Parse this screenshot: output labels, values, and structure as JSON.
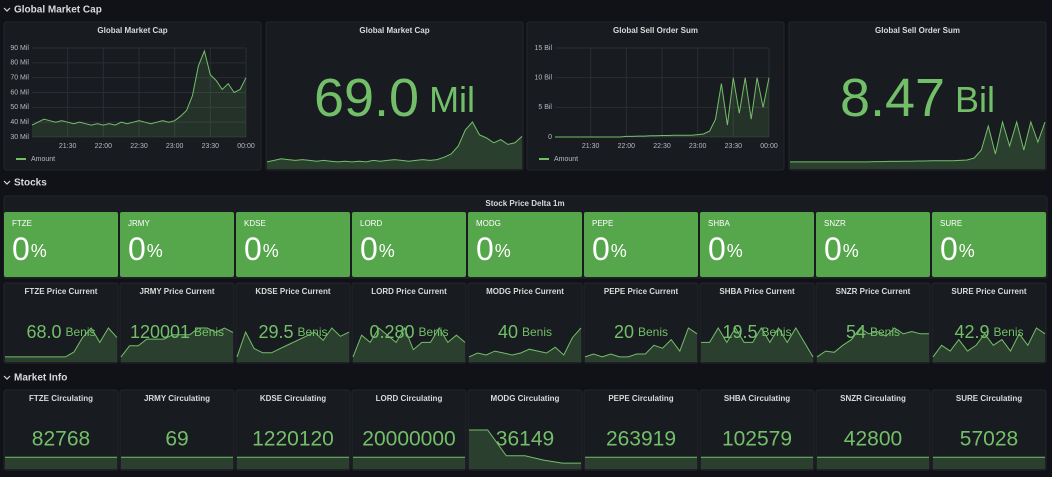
{
  "sections": [
    {
      "title": "Global Market Cap"
    },
    {
      "title": "Stocks",
      "group_title": "Stock Price Delta 1m"
    },
    {
      "title": "Market Info"
    }
  ],
  "chart_data": [
    {
      "type": "line",
      "title": "Global Market Cap",
      "x": [
        "21:00",
        "21:05",
        "21:10",
        "21:15",
        "21:20",
        "21:25",
        "21:30",
        "21:35",
        "21:40",
        "21:45",
        "21:50",
        "21:55",
        "22:00",
        "22:05",
        "22:10",
        "22:15",
        "22:20",
        "22:25",
        "22:30",
        "22:35",
        "22:40",
        "22:45",
        "22:50",
        "22:55",
        "23:00",
        "23:05",
        "23:10",
        "23:15",
        "23:20",
        "23:25",
        "23:30",
        "23:35",
        "23:40",
        "23:45",
        "23:50",
        "23:55",
        "00:00"
      ],
      "series": [
        {
          "name": "Amount",
          "color": "#73bf69",
          "values": [
            38000000,
            40000000,
            42000000,
            41000000,
            40000000,
            41000000,
            40000000,
            39000000,
            40000000,
            39000000,
            38000000,
            39000000,
            38000000,
            39000000,
            38000000,
            40000000,
            39000000,
            40000000,
            41000000,
            40000000,
            39000000,
            40000000,
            41000000,
            40000000,
            41000000,
            44000000,
            48000000,
            58000000,
            78000000,
            88000000,
            72000000,
            68000000,
            62000000,
            66000000,
            60000000,
            62000000,
            70000000
          ]
        }
      ],
      "ylim": [
        30000000,
        90000000
      ],
      "yticks": [
        {
          "value": 30000000,
          "label": "30 Mil"
        },
        {
          "value": 40000000,
          "label": "40 Mil"
        },
        {
          "value": 50000000,
          "label": "50 Mil"
        },
        {
          "value": 60000000,
          "label": "60 Mil"
        },
        {
          "value": 70000000,
          "label": "70 Mil"
        },
        {
          "value": 80000000,
          "label": "80 Mil"
        },
        {
          "value": 90000000,
          "label": "90 Mil"
        }
      ],
      "xticks": [
        "21:30",
        "22:00",
        "22:30",
        "23:00",
        "23:30",
        "00:00"
      ],
      "grid": true
    },
    {
      "type": "line",
      "title": "Global Sell Order Sum",
      "x": [
        "21:00",
        "21:05",
        "21:10",
        "21:15",
        "21:20",
        "21:25",
        "21:30",
        "21:35",
        "21:40",
        "21:45",
        "21:50",
        "21:55",
        "22:00",
        "22:05",
        "22:10",
        "22:15",
        "22:20",
        "22:25",
        "22:30",
        "22:35",
        "22:40",
        "22:45",
        "22:50",
        "22:55",
        "23:00",
        "23:05",
        "23:10",
        "23:15",
        "23:20",
        "23:25",
        "23:30",
        "23:35",
        "23:40",
        "23:45",
        "23:50",
        "23:55",
        "00:00"
      ],
      "series": [
        {
          "name": "Amount",
          "color": "#73bf69",
          "values": [
            0,
            0,
            0,
            0,
            0,
            0,
            0,
            0,
            0,
            0,
            0,
            0,
            100000000,
            100000000,
            150000000,
            150000000,
            200000000,
            200000000,
            250000000,
            250000000,
            300000000,
            300000000,
            300000000,
            300000000,
            400000000,
            500000000,
            1000000000,
            3000000000,
            9000000000,
            2000000000,
            10000000000,
            4000000000,
            10000000000,
            3000000000,
            10000000000,
            5000000000,
            10000000000
          ]
        }
      ],
      "ylim": [
        0,
        15000000000
      ],
      "yticks": [
        0,
        {
          "value": 5000000000,
          "label": "5 Bil"
        },
        {
          "value": 10000000000,
          "label": "10 Bil"
        },
        {
          "value": 15000000000,
          "label": "15 Bil"
        }
      ],
      "xticks": [
        "21:30",
        "22:00",
        "22:30",
        "23:00",
        "23:30",
        "00:00"
      ],
      "grid": true
    }
  ],
  "stats": [
    {
      "title": "Global Market Cap",
      "value": "69.0",
      "unit": "Mil"
    },
    {
      "title": "Global Sell Order Sum",
      "value": "8.47",
      "unit": "Bil"
    }
  ],
  "stocks": [
    {
      "symbol": "FTZE",
      "delta": 0,
      "delta_unit": "%",
      "price_title": "FTZE Price Current",
      "price": "68.0",
      "price_unit": "Benis",
      "price_history": [
        66,
        66,
        66,
        66,
        66,
        66,
        66,
        66,
        66.5,
        68,
        69,
        67.5,
        69,
        68
      ],
      "circ_title": "FTZE Circulating",
      "circulating": 82768,
      "circ_history": [
        82768,
        82768
      ]
    },
    {
      "symbol": "JRMY",
      "delta": 0,
      "delta_unit": "%",
      "price_title": "JRMY Price Current",
      "price": 120001,
      "price_unit": "Benis",
      "price_history": [
        119990,
        119995,
        119995,
        119998,
        119998,
        119998,
        120000,
        120000,
        120000,
        120003,
        120003,
        120001,
        120003,
        120001
      ],
      "circ_title": "JRMY Circulating",
      "circulating": 69,
      "circ_history": [
        69,
        69
      ]
    },
    {
      "symbol": "KDSE",
      "delta": 0,
      "delta_unit": "%",
      "price_title": "KDSE Price Current",
      "price": 29.5,
      "price_unit": "Benis",
      "price_history": [
        29,
        29.6,
        29.2,
        29.1,
        29.1,
        29.2,
        29.3,
        29.4,
        29.5,
        29.6,
        29.4,
        29.7,
        29.5,
        29.6
      ],
      "circ_title": "KDSE Circulating",
      "circulating": 1220120,
      "circ_history": [
        1220120,
        1220120
      ]
    },
    {
      "symbol": "LORD",
      "delta": 0,
      "delta_unit": "%",
      "price_title": "LORD Price Current",
      "price": "0.280",
      "price_unit": "Benis",
      "price_history": [
        0.27,
        0.285,
        0.28,
        0.29,
        0.285,
        0.28,
        0.29,
        0.275,
        0.28,
        0.28,
        0.29,
        0.28,
        0.285,
        0.28
      ],
      "circ_title": "LORD Circulating",
      "circulating": 20000000,
      "circ_history": [
        20000000,
        20000000
      ]
    },
    {
      "symbol": "MODG",
      "delta": 0,
      "delta_unit": "%",
      "price_title": "MODG Price Current",
      "price": 40,
      "price_unit": "Benis",
      "price_history": [
        39,
        39.2,
        39.1,
        39.3,
        39.2,
        39.1,
        39.2,
        39.4,
        39.3,
        39.2,
        39.5,
        39.1,
        40,
        40.5
      ],
      "circ_title": "MODG Circulating",
      "circulating": 36149,
      "circ_history": [
        40000,
        40000,
        37000,
        37000,
        36500,
        36149,
        36149
      ]
    },
    {
      "symbol": "PEPE",
      "delta": 0,
      "delta_unit": "%",
      "price_title": "PEPE Price Current",
      "price": 20,
      "price_unit": "Benis",
      "price_history": [
        19.2,
        19.3,
        19.2,
        19.3,
        19.2,
        19.2,
        19.3,
        19.3,
        19.6,
        19.5,
        19.8,
        19.4,
        20.2,
        20
      ],
      "circ_title": "PEPE Circulating",
      "circulating": 263919,
      "circ_history": [
        263919,
        263919
      ]
    },
    {
      "symbol": "SHBA",
      "delta": 0,
      "delta_unit": "%",
      "price_title": "SHBA Price Current",
      "price": 19.5,
      "price_unit": "Benis",
      "price_history": [
        19.6,
        19.6,
        19.7,
        19.6,
        19.7,
        19.6,
        19.6,
        19.7,
        19.6,
        19.7,
        19.6,
        19.7,
        19.6,
        19.5
      ],
      "circ_title": "SHBA Circulating",
      "circulating": 102579,
      "circ_history": [
        102579,
        102579
      ]
    },
    {
      "symbol": "SNZR",
      "delta": 0,
      "delta_unit": "%",
      "price_title": "SNZR Price Current",
      "price": 54,
      "price_unit": "Benis",
      "price_history": [
        52,
        52.5,
        52.4,
        53,
        53.5,
        54.5,
        54,
        54.2,
        53.8,
        54.5,
        54,
        54.2,
        54,
        54
      ],
      "circ_title": "SNZR Circulating",
      "circulating": 42800,
      "circ_history": [
        42800,
        42800
      ]
    },
    {
      "symbol": "SURE",
      "delta": 0,
      "delta_unit": "%",
      "price_title": "SURE Price Current",
      "price": 42.9,
      "price_unit": "Benis",
      "price_history": [
        42.5,
        42.7,
        42.6,
        42.8,
        42.6,
        42.7,
        42.9,
        42.7,
        42.8,
        42.6,
        42.9,
        42.7,
        43,
        42.9
      ],
      "circ_title": "SURE Circulating",
      "circulating": 57028,
      "circ_history": [
        57028,
        57028
      ]
    }
  ]
}
